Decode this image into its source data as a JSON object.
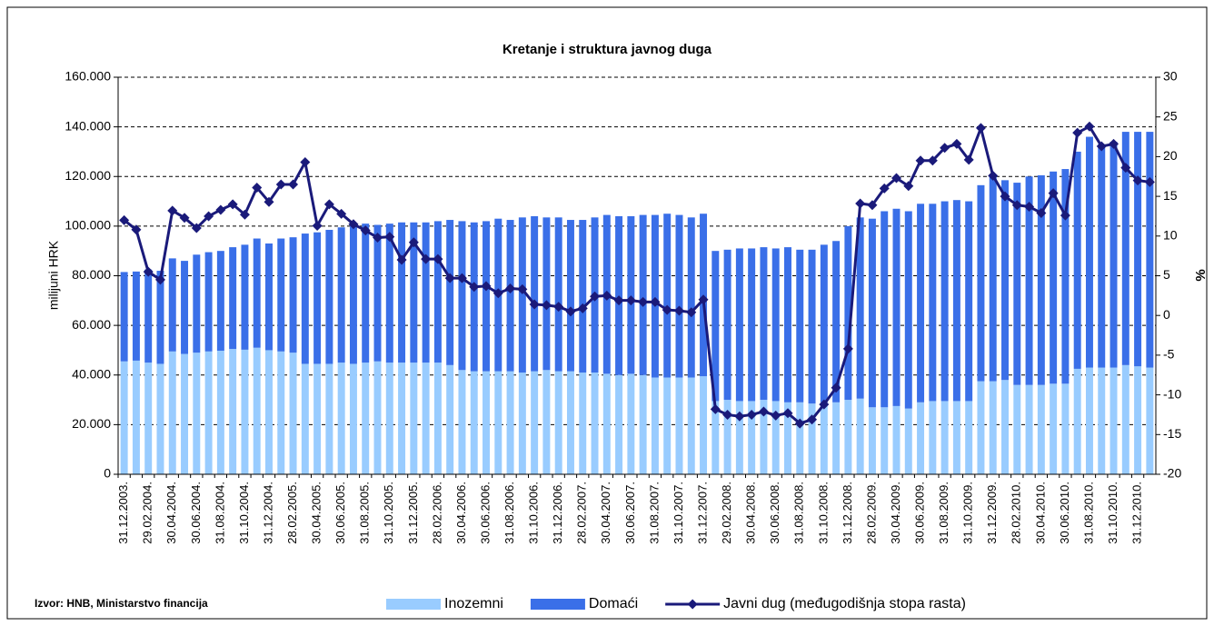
{
  "chart_data": {
    "type": "bar",
    "stacked": true,
    "title": "Kretanje i struktura javnog duga",
    "y_label": "milijuni HRK",
    "y2_label": "%",
    "source": "Izvor: HNB, Ministarstvo financija",
    "categories": [
      "31.12.2003.",
      null,
      "29.02.2004.",
      null,
      "30.04.2004.",
      null,
      "30.06.2004.",
      null,
      "31.08.2004.",
      null,
      "31.10.2004.",
      null,
      "31.12.2004.",
      null,
      "28.02.2005.",
      null,
      "30.04.2005.",
      null,
      "30.06.2005.",
      null,
      "31.08.2005.",
      null,
      "31.10.2005.",
      null,
      "31.12.2005.",
      null,
      "28.02.2006.",
      null,
      "30.04.2006.",
      null,
      "30.06.2006.",
      null,
      "31.08.2006.",
      null,
      "31.10.2006.",
      null,
      "31.12.2006.",
      null,
      "28.02.2007.",
      null,
      "30.04.2007.",
      null,
      "30.06.2007.",
      null,
      "31.08.2007.",
      null,
      "31.10.2007.",
      null,
      "31.12.2007.",
      null,
      "29.02.2008.",
      null,
      "30.04.2008.",
      null,
      "30.06.2008.",
      null,
      "31.08.2008.",
      null,
      "31.10.2008.",
      null,
      "31.12.2008.",
      null,
      "28.02.2009.",
      null,
      "30.04.2009.",
      null,
      "30.06.2009.",
      null,
      "31.08.2009.",
      null,
      "31.10.2009.",
      null,
      "31.12.2009.",
      null,
      "28.02.2010.",
      null,
      "30.04.2010.",
      null,
      "30.06.2010.",
      null,
      "31.08.2010.",
      null,
      "31.10.2010.",
      null,
      "31.12.2010.",
      null
    ],
    "series": [
      {
        "name": "Inozemni",
        "color": "#99ccff",
        "values": [
          45500,
          45800,
          45000,
          44500,
          49500,
          48500,
          49000,
          49500,
          49800,
          50500,
          50200,
          51000,
          50000,
          49500,
          49000,
          44500,
          44500,
          44500,
          45000,
          44500,
          45000,
          45500,
          45000,
          45000,
          45000,
          45000,
          45000,
          44000,
          42000,
          41500,
          41500,
          41500,
          41500,
          41000,
          41500,
          42000,
          41500,
          41500,
          41000,
          41000,
          40500,
          40000,
          40500,
          40000,
          39000,
          39000,
          39000,
          39000,
          39500,
          29500,
          30000,
          29500,
          29500,
          30000,
          29500,
          29000,
          29000,
          28500,
          29000,
          29000,
          30000,
          30500,
          27000,
          27000,
          27500,
          26500,
          29000,
          29500,
          29500,
          29500,
          29500,
          37500,
          37500,
          38000,
          36000,
          36000,
          36000,
          36500,
          36500,
          42500,
          43000,
          43000,
          43000,
          44000,
          43500,
          43000
        ]
      },
      {
        "name": "Domaći",
        "color": "#3a6fe8",
        "values": [
          36000,
          35900,
          37500,
          37500,
          37500,
          37500,
          39500,
          40000,
          40200,
          41000,
          42300,
          44000,
          43000,
          45500,
          46500,
          52500,
          53000,
          54000,
          54500,
          56000,
          56000,
          55000,
          56000,
          56500,
          56500,
          56500,
          57000,
          58500,
          60000,
          60000,
          60500,
          61500,
          61000,
          62500,
          62500,
          61500,
          62000,
          61000,
          61500,
          62500,
          64000,
          64000,
          63500,
          64500,
          65500,
          66000,
          65500,
          64500,
          65500,
          60500,
          60500,
          61500,
          61500,
          61500,
          61500,
          62500,
          61500,
          62000,
          63500,
          65000,
          70000,
          73000,
          76000,
          79000,
          79500,
          79500,
          80000,
          79500,
          80500,
          81000,
          80500,
          79000,
          82500,
          80500,
          81500,
          84000,
          84500,
          85500,
          86500,
          87500,
          93000,
          90000,
          91000,
          94000,
          94500,
          95000
        ]
      },
      {
        "name": "Javni dug (međugodišnja stopa rasta)",
        "color": "#1a1a7a",
        "type": "line",
        "axis": "y2",
        "values": [
          12,
          10.8,
          5.5,
          4.5,
          13.2,
          12.3,
          11,
          12.5,
          13.3,
          14,
          12.7,
          16.1,
          14.3,
          16.5,
          16.5,
          19.3,
          11.3,
          14,
          12.8,
          11.5,
          10.7,
          9.8,
          9.9,
          7,
          9.2,
          7.1,
          7.1,
          4.7,
          4.7,
          3.6,
          3.7,
          2.8,
          3.4,
          3.3,
          1.4,
          1.3,
          1.1,
          0.5,
          0.9,
          2.4,
          2.5,
          1.9,
          1.9,
          1.7,
          1.7,
          0.7,
          0.6,
          0.4,
          2.0,
          -11.8,
          -12.5,
          -12.7,
          -12.5,
          -12.1,
          -12.6,
          -12.3,
          -13.6,
          -13.1,
          -11.2,
          -9.1,
          -4.2,
          14.1,
          13.9,
          16,
          17.3,
          16.3,
          19.5,
          19.5,
          21.1,
          21.6,
          19.6,
          23.6,
          17.6,
          15,
          13.9,
          13.7,
          12.9,
          15.4,
          12.6,
          23,
          23.8,
          21.3,
          21.6,
          18.6,
          17,
          16.8
        ]
      }
    ],
    "ylim": [
      0,
      160000
    ],
    "yticks": [
      0,
      {
        "value": 20000,
        "label": "20.000"
      },
      {
        "value": 40000,
        "label": "40.000"
      },
      {
        "value": 60000,
        "label": "60.000"
      },
      {
        "value": 80000,
        "label": "80.000"
      },
      {
        "value": 100000,
        "label": "100.000"
      },
      {
        "value": 120000,
        "label": "120.000"
      },
      {
        "value": 140000,
        "label": "140.000"
      },
      {
        "value": 160000,
        "label": "160.000"
      }
    ],
    "y2lim": [
      -20,
      30
    ],
    "y2ticks": [
      -20,
      -15,
      -10,
      -5,
      0,
      5,
      10,
      15,
      20,
      25,
      30
    ],
    "grid": true
  }
}
